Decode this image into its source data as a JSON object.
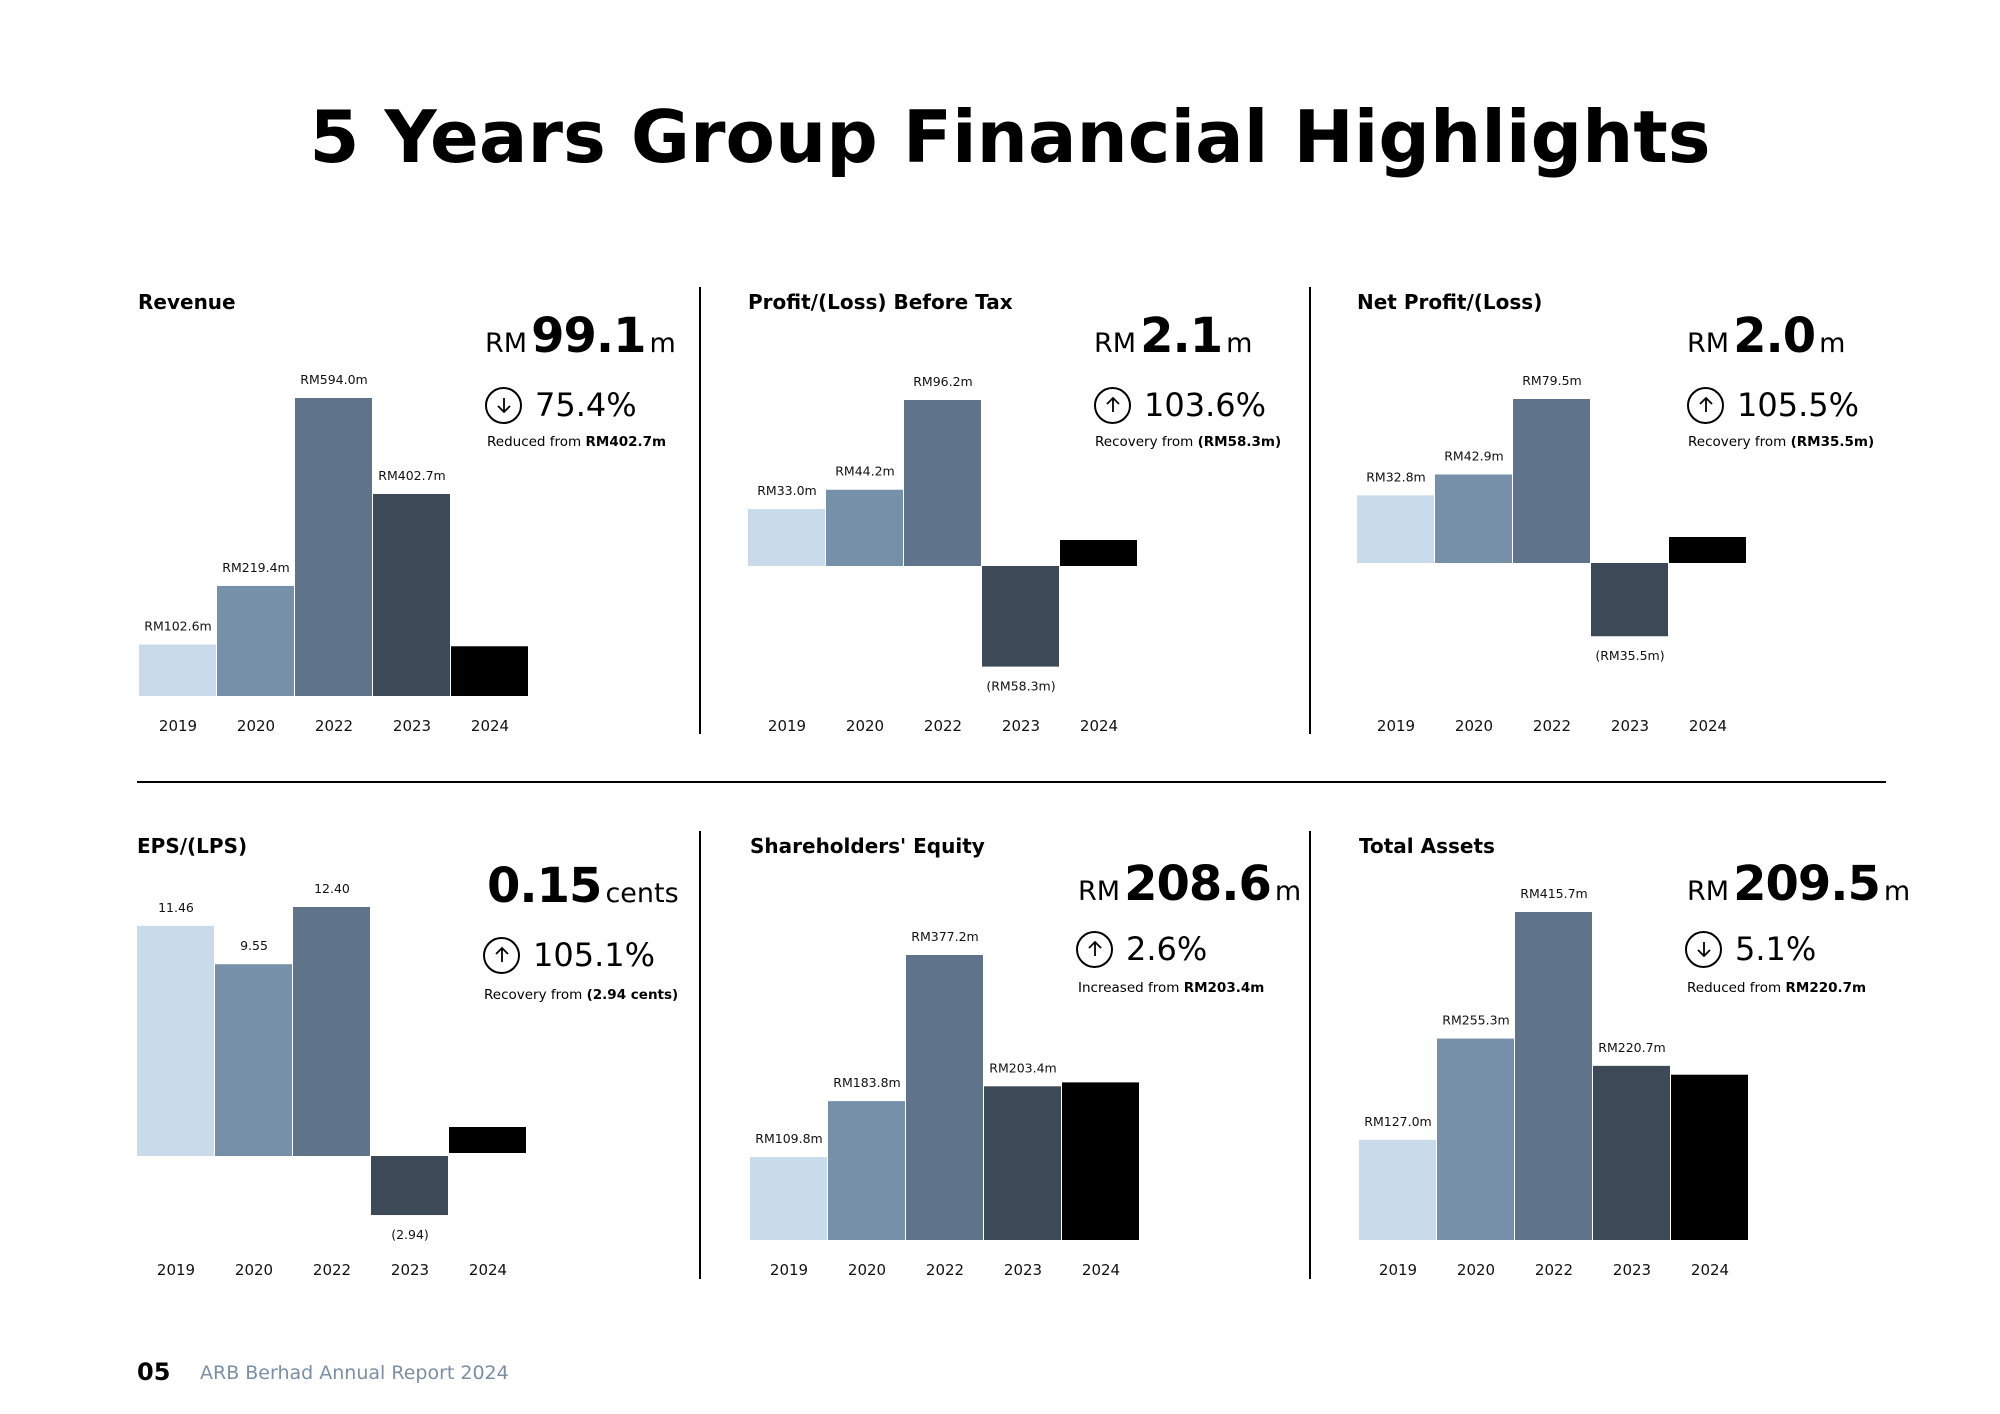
{
  "title": "5 Years Group Financial Highlights",
  "colors": [
    "#c9dbea",
    "#7590a8",
    "#5f748a",
    "#3c4a58",
    "#000000"
  ],
  "panels": [
    {
      "title": "Revenue",
      "currency": "RM",
      "value": "99.1",
      "unit": "m",
      "direction": "down",
      "arrow_icon": "arrow-down-circle",
      "change": "75.4%",
      "note_prefix": "Reduced from ",
      "note_bold": "RM402.7m"
    },
    {
      "title": "Profit/(Loss) Before Tax",
      "currency": "RM",
      "value": "2.1",
      "unit": "m",
      "direction": "up",
      "arrow_icon": "arrow-up-circle",
      "change": "103.6%",
      "note_prefix": "Recovery from ",
      "note_bold": "(RM58.3m)"
    },
    {
      "title": "Net Profit/(Loss)",
      "currency": "RM",
      "value": "2.0",
      "unit": "m",
      "direction": "up",
      "arrow_icon": "arrow-up-circle",
      "change": "105.5%",
      "note_prefix": "Recovery from ",
      "note_bold": "(RM35.5m)"
    },
    {
      "title": "EPS/(LPS)",
      "currency": "",
      "value": "0.15",
      "unit": "cents",
      "direction": "up",
      "arrow_icon": "arrow-up-circle",
      "change": "105.1%",
      "note_prefix": "Recovery from ",
      "note_bold": "(2.94 cents)"
    },
    {
      "title": "Shareholders' Equity",
      "currency": "RM",
      "value": "208.6",
      "unit": "m",
      "direction": "up",
      "arrow_icon": "arrow-up-circle",
      "change": "2.6%",
      "note_prefix": "Increased from ",
      "note_bold": "RM203.4m"
    },
    {
      "title": "Total Assets",
      "currency": "RM",
      "value": "209.5",
      "unit": "m",
      "direction": "down",
      "arrow_icon": "arrow-down-circle",
      "change": "5.1%",
      "note_prefix": "Reduced from ",
      "note_bold": "RM220.7m"
    }
  ],
  "chart_data": [
    {
      "type": "bar",
      "title": "Revenue",
      "categories": [
        "2019",
        "2020",
        "2022",
        "2023",
        "2024"
      ],
      "values": [
        102.6,
        219.4,
        594.0,
        402.7,
        99.1
      ],
      "labels": [
        "RM102.6m",
        "RM219.4m",
        "RM594.0m",
        "RM402.7m",
        null
      ]
    },
    {
      "type": "bar",
      "title": "Profit/(Loss) Before Tax",
      "categories": [
        "2019",
        "2020",
        "2022",
        "2023",
        "2024"
      ],
      "values": [
        33.0,
        44.2,
        96.2,
        -58.3,
        2.1
      ],
      "labels": [
        "RM33.0m",
        "RM44.2m",
        "RM96.2m",
        "(RM58.3m)",
        null
      ]
    },
    {
      "type": "bar",
      "title": "Net Profit/(Loss)",
      "categories": [
        "2019",
        "2020",
        "2022",
        "2023",
        "2024"
      ],
      "values": [
        32.8,
        42.9,
        79.5,
        -35.5,
        2.0
      ],
      "labels": [
        "RM32.8m",
        "RM42.9m",
        "RM79.5m",
        "(RM35.5m)",
        null
      ]
    },
    {
      "type": "bar",
      "title": "EPS/(LPS)",
      "categories": [
        "2019",
        "2020",
        "2022",
        "2023",
        "2024"
      ],
      "values": [
        11.46,
        9.55,
        12.4,
        -2.94,
        0.15
      ],
      "labels": [
        "11.46",
        "9.55",
        "12.40",
        "(2.94)",
        null
      ]
    },
    {
      "type": "bar",
      "title": "Shareholders' Equity",
      "categories": [
        "2019",
        "2020",
        "2022",
        "2023",
        "2024"
      ],
      "values": [
        109.8,
        183.8,
        377.2,
        203.4,
        208.6
      ],
      "labels": [
        "RM109.8m",
        "RM183.8m",
        "RM377.2m",
        "RM203.4m",
        null
      ]
    },
    {
      "type": "bar",
      "title": "Total Assets",
      "categories": [
        "2019",
        "2020",
        "2022",
        "2023",
        "2024"
      ],
      "values": [
        127.0,
        255.3,
        415.7,
        220.7,
        209.5
      ],
      "labels": [
        "RM127.0m",
        "RM255.3m",
        "RM415.7m",
        "RM220.7m",
        null
      ]
    }
  ],
  "footer": {
    "page": "05",
    "text": "ARB Berhad Annual Report 2024"
  }
}
